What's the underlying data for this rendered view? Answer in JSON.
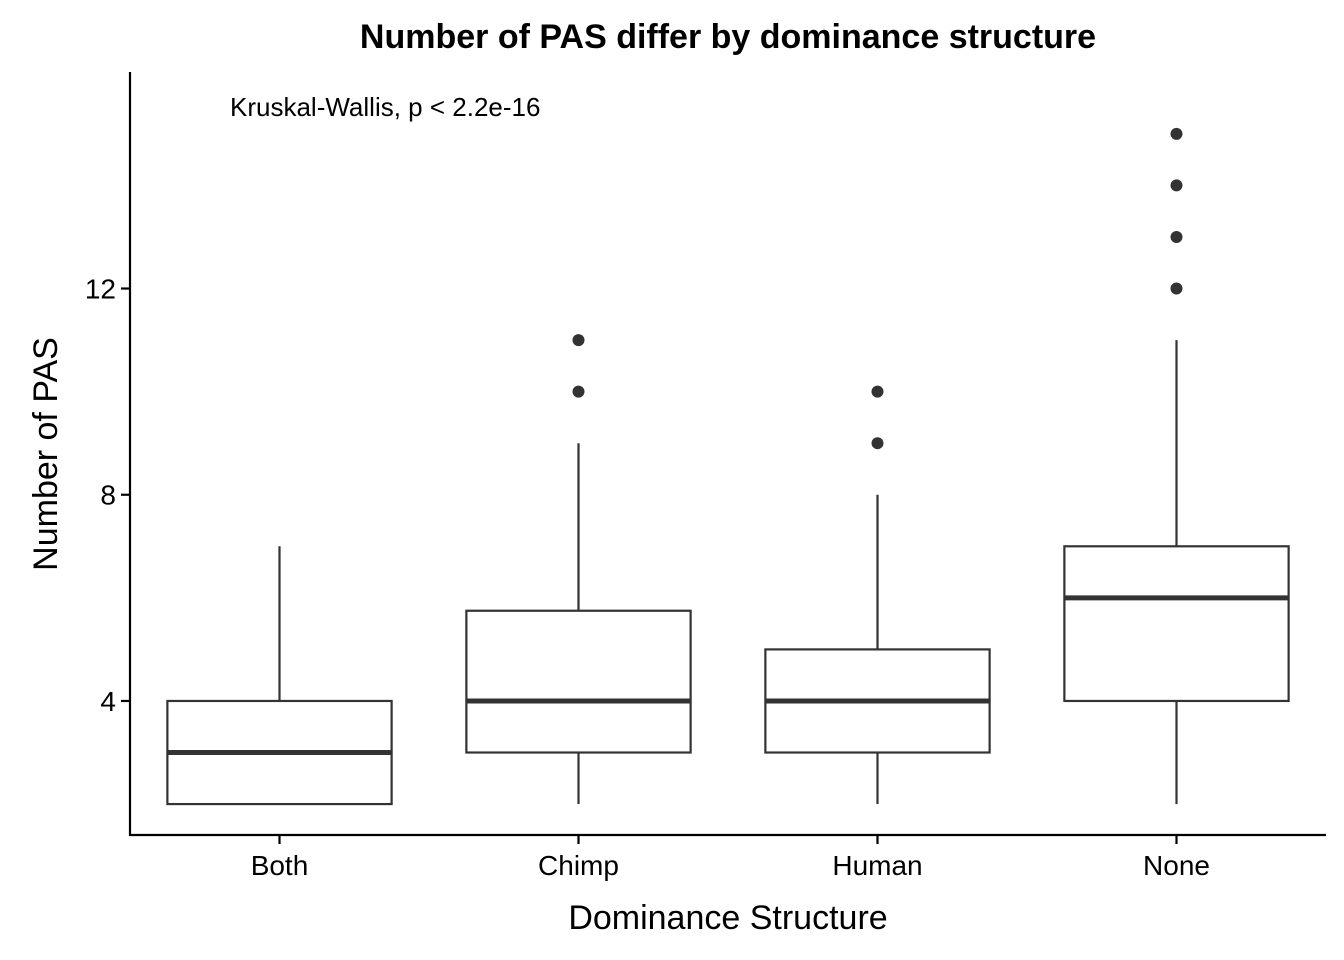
{
  "chart_data": {
    "type": "box",
    "title": "Number of PAS differ by dominance structure",
    "xlabel": "Dominance Structure",
    "ylabel": "Number of PAS",
    "annotation": "Kruskal-Wallis, p < 2.2e-16",
    "categories": [
      "Both",
      "Chimp",
      "Human",
      "None"
    ],
    "yticks": [
      4,
      8,
      12
    ],
    "ylim": [
      1.4,
      16.2
    ],
    "grid": false,
    "legend": "none",
    "boxes": [
      {
        "category": "Both",
        "whisker_low": 2,
        "q1": 2,
        "median": 3,
        "q3": 4,
        "whisker_high": 7,
        "outliers": []
      },
      {
        "category": "Chimp",
        "whisker_low": 2,
        "q1": 3,
        "median": 4,
        "q3": 5.75,
        "whisker_high": 9,
        "outliers": [
          10,
          11
        ]
      },
      {
        "category": "Human",
        "whisker_low": 2,
        "q1": 3,
        "median": 4,
        "q3": 5,
        "whisker_high": 8,
        "outliers": [
          9,
          10
        ]
      },
      {
        "category": "None",
        "whisker_low": 2,
        "q1": 4,
        "median": 6,
        "q3": 7,
        "whisker_high": 11,
        "outliers": [
          12,
          13,
          14,
          15
        ]
      }
    ],
    "colors": {
      "line": "#333333",
      "axis": "#000000",
      "fill": "#ffffff"
    }
  }
}
